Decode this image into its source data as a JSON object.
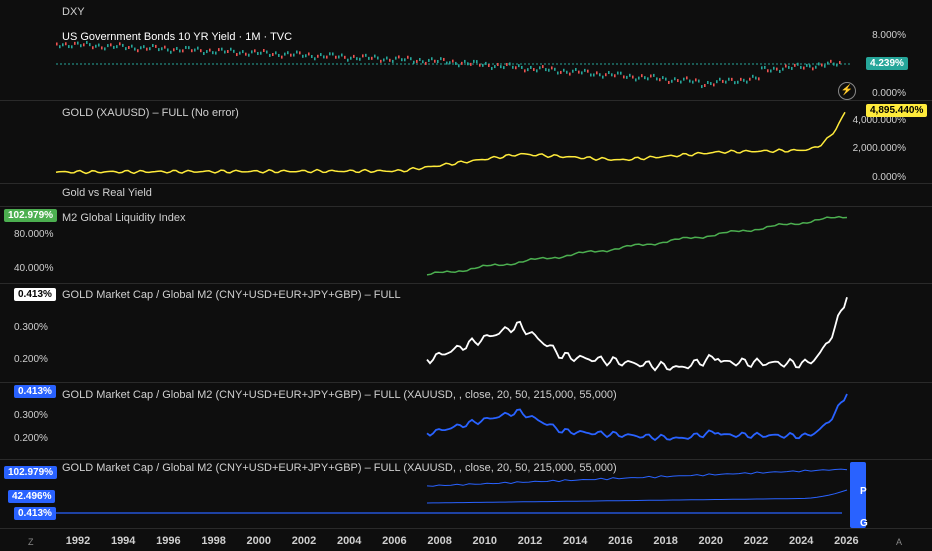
{
  "colors": {
    "background": "#0e0e0e",
    "yield_up": "#26a69a",
    "yield_down": "#ef5350",
    "gold": "#ffeb3b",
    "m2": "#4caf50",
    "ratio_white": "#ffffff",
    "ratio_blue": "#2962ff"
  },
  "panes": {
    "dxy": {
      "title": "DXY"
    },
    "yield": {
      "title": "US Government Bonds 10 YR Yield · 1M · TVC",
      "axis": [
        "8.000%",
        "0.000%"
      ],
      "badge": "4.239%"
    },
    "gold": {
      "title": "GOLD (XAUUSD) – FULL (No error)",
      "axis": [
        "4,000.000%",
        "2,000.000%",
        "0.000%"
      ],
      "badge": "4,895.440%"
    },
    "gold_vs_real": {
      "title": "Gold vs Real Yield"
    },
    "m2": {
      "title": "M2 Global Liquidity Index",
      "badge": "102.979%",
      "axis": [
        "80.000%",
        "40.000%"
      ]
    },
    "ratio": {
      "title": "GOLD Market Cap / Global M2 (CNY+USD+EUR+JPY+GBP) – FULL",
      "badge": "0.413%",
      "axis": [
        "0.300%",
        "0.200%"
      ]
    },
    "ratio_params": {
      "title": "GOLD Market Cap / Global M2 (CNY+USD+EUR+JPY+GBP) – FULL (XAUUSD, , close, 20, 50, 215,000, 55,000)",
      "badge": "0.413%",
      "axis": [
        "0.300%",
        "0.200%"
      ]
    },
    "ratio_params2": {
      "title": "GOLD Market Cap / Global M2 (CNY+USD+EUR+JPY+GBP) – FULL (XAUUSD, , close, 20, 50, 215,000, 55,000)",
      "badges": [
        "102.979%",
        "42.496%",
        "0.413%"
      ]
    }
  },
  "xaxis": {
    "ticks": [
      "1992",
      "1994",
      "1996",
      "1998",
      "2000",
      "2002",
      "2004",
      "2006",
      "2008",
      "2010",
      "2012",
      "2014",
      "2016",
      "2018",
      "2020",
      "2022",
      "2024",
      "2026"
    ],
    "left_corner": "Z",
    "right_corner": "A"
  },
  "toolbar": {
    "lightning_icon": "⚡",
    "scroll_labels": [
      "P",
      "G"
    ]
  }
}
